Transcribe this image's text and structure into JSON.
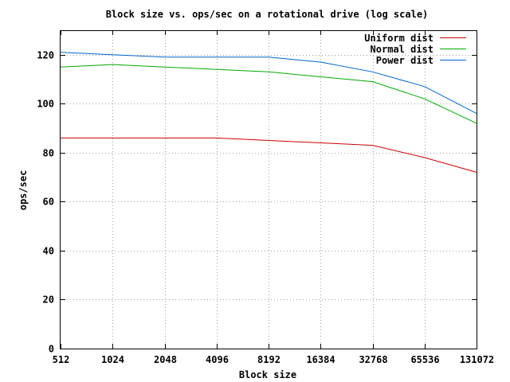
{
  "chart_data": {
    "type": "line",
    "title": "Block size vs. ops/sec on a rotational drive (log scale)",
    "xlabel": "Block size",
    "ylabel": "ops/sec",
    "x_scale": "log2",
    "x": [
      512,
      1024,
      2048,
      4096,
      8192,
      16384,
      32768,
      65536,
      131072
    ],
    "x_tick_labels": [
      "512",
      "1024",
      "2048",
      "4096",
      "8192",
      "16384",
      "32768",
      "65536",
      "131072"
    ],
    "ylim": [
      0,
      130
    ],
    "y_ticks": [
      0,
      20,
      40,
      60,
      80,
      100,
      120
    ],
    "grid": true,
    "legend_position": "top-right",
    "series": [
      {
        "name": "Uniform dist",
        "color": "#cc0000",
        "values": [
          86,
          86,
          86,
          86,
          85,
          84,
          83,
          78,
          72
        ]
      },
      {
        "name": "Normal dist",
        "color": "#00aa00",
        "values": [
          115,
          116,
          115,
          114,
          113,
          111,
          109,
          102,
          92
        ]
      },
      {
        "name": "Power dist",
        "color": "#0066cc",
        "values": [
          121,
          120,
          119,
          119,
          119,
          117,
          113,
          107,
          96
        ]
      }
    ]
  }
}
